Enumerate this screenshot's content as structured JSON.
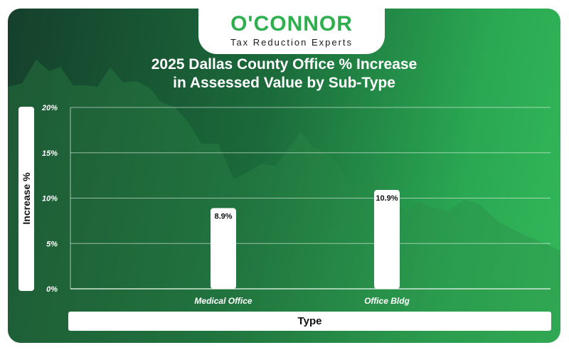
{
  "brand": {
    "name": "O'CONNOR",
    "tagline": "Tax Reduction Experts",
    "color": "#2fae4e"
  },
  "colors": {
    "bar": "#ffffff",
    "background_dark": "#15402c",
    "background_light": "#33b85a"
  },
  "chart_data": {
    "type": "bar",
    "title": "2025 Dallas County Office % Increase\nin Assessed Value by Sub-Type",
    "title_lines": [
      "2025 Dallas County Office % Increase",
      "in Assessed Value by Sub-Type"
    ],
    "xlabel": "Type",
    "ylabel": "Increase %",
    "categories": [
      "Medical Office",
      "Office Bldg"
    ],
    "values": [
      8.9,
      10.9
    ],
    "data_labels": [
      "8.9%",
      "10.9%"
    ],
    "yticks": [
      "0%",
      "5%",
      "10%",
      "15%",
      "20%"
    ],
    "ytick_values": [
      0,
      5,
      10,
      15,
      20
    ],
    "ylim": [
      0,
      20
    ],
    "grid": true,
    "legend": "none"
  }
}
